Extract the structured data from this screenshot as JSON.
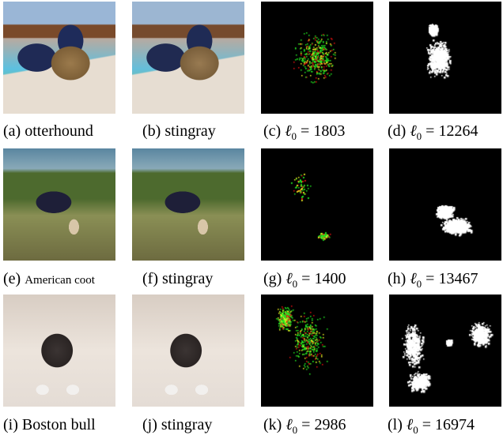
{
  "figure": {
    "rows": [
      {
        "panels": [
          {
            "id": "a",
            "type": "original",
            "caption_label": "(a)",
            "caption_text": "otterhound",
            "small": false
          },
          {
            "id": "b",
            "type": "adversarial",
            "caption_label": "(b)",
            "caption_text": "stingray",
            "small": false
          },
          {
            "id": "c",
            "type": "perturbation-color",
            "caption_label": "(c)",
            "l0_symbol": "ℓ",
            "l0_sub": "0",
            "caption_eq": " = 1803",
            "l0": 1803
          },
          {
            "id": "d",
            "type": "perturbation-mask",
            "caption_label": "(d)",
            "l0_symbol": "ℓ",
            "l0_sub": "0",
            "caption_eq": " = 12264",
            "l0": 12264
          }
        ]
      },
      {
        "panels": [
          {
            "id": "e",
            "type": "original",
            "caption_label": "(e)",
            "caption_text": "American coot",
            "small": true
          },
          {
            "id": "f",
            "type": "adversarial",
            "caption_label": "(f)",
            "caption_text": "stingray",
            "small": false
          },
          {
            "id": "g",
            "type": "perturbation-color",
            "caption_label": "(g)",
            "l0_symbol": "ℓ",
            "l0_sub": "0",
            "caption_eq": " = 1400",
            "l0": 1400
          },
          {
            "id": "h",
            "type": "perturbation-mask",
            "caption_label": "(h)",
            "l0_symbol": "ℓ",
            "l0_sub": "0",
            "caption_eq": " = 13467",
            "l0": 13467
          }
        ]
      },
      {
        "panels": [
          {
            "id": "i",
            "type": "original",
            "caption_label": "(i)",
            "caption_text": "Boston bull",
            "small": false
          },
          {
            "id": "j",
            "type": "adversarial",
            "caption_label": "(j)",
            "caption_text": "stingray",
            "small": false
          },
          {
            "id": "k",
            "type": "perturbation-color",
            "caption_label": "(k)",
            "l0_symbol": "ℓ",
            "l0_sub": "0",
            "caption_eq": " = 2986",
            "l0": 2986
          },
          {
            "id": "l",
            "type": "perturbation-mask",
            "caption_label": "(l)",
            "l0_symbol": "ℓ",
            "l0_sub": "0",
            "caption_eq": " = 16974",
            "l0": 16974
          }
        ]
      }
    ],
    "colors": {
      "perturb_bg": "#000000",
      "perturb_green": "#22ee22",
      "perturb_red": "#ee1111",
      "perturb_yellow": "#f5f522",
      "mask_white": "#ffffff"
    }
  }
}
